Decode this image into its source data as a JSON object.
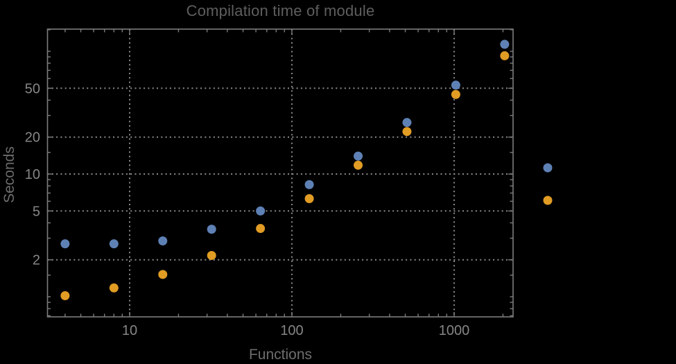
{
  "title": "Compilation time of module",
  "colors": {
    "background": "#000000",
    "frame": "#7d7d7d",
    "grid": "#8b8b8b",
    "title_text": "#5e5e5e",
    "axis_label_text": "#6d6d6d",
    "tick_label_text": "#868686",
    "series_blue": "#5e81b5",
    "series_orange": "#e19c24"
  },
  "chart_data": {
    "type": "scatter",
    "title": "Compilation time of module",
    "xlabel": "Functions",
    "ylabel": "Seconds",
    "x_scale": "log",
    "y_scale": "log",
    "xlim": [
      3.2,
      2280
    ],
    "ylim": [
      0.68,
      150
    ],
    "grid": "dotted",
    "legend_position": "right-outside",
    "x": [
      4,
      8,
      16,
      32,
      64,
      128,
      256,
      512,
      1024,
      2048
    ],
    "series": [
      {
        "name": "series-1-blue",
        "color": "#5e81b5",
        "values": [
          2.7,
          2.7,
          2.85,
          3.55,
          5.0,
          8.2,
          14.0,
          26.3,
          53,
          114
        ]
      },
      {
        "name": "series-2-orange",
        "color": "#e19c24",
        "values": [
          1.02,
          1.18,
          1.52,
          2.17,
          3.6,
          6.3,
          11.8,
          22.2,
          44.5,
          92
        ]
      }
    ],
    "x_gridlines": [
      10,
      100,
      1000
    ],
    "y_gridlines": [
      2,
      5,
      10,
      20,
      50
    ],
    "x_ticks_labeled": [
      {
        "v": 10,
        "label": "10"
      },
      {
        "v": 100,
        "label": "100"
      },
      {
        "v": 1000,
        "label": "1000"
      }
    ],
    "y_ticks_labeled": [
      {
        "v": 2,
        "label": "2"
      },
      {
        "v": 5,
        "label": "5"
      },
      {
        "v": 10,
        "label": "10"
      },
      {
        "v": 20,
        "label": "20"
      },
      {
        "v": 50,
        "label": "50"
      }
    ],
    "x_ticks_minor": [
      4,
      5,
      6,
      7,
      8,
      9,
      20,
      30,
      40,
      50,
      60,
      70,
      80,
      90,
      200,
      300,
      400,
      500,
      600,
      700,
      800,
      900,
      2000
    ],
    "y_ticks_minor": [
      0.7,
      0.8,
      0.9,
      1,
      1.5,
      3,
      4,
      6,
      7,
      8,
      9,
      15,
      30,
      40,
      60,
      70,
      80,
      90,
      100,
      150
    ],
    "legend_markers": [
      {
        "series": "series-1-blue",
        "color": "#5e81b5"
      },
      {
        "series": "series-2-orange",
        "color": "#e19c24"
      }
    ]
  }
}
